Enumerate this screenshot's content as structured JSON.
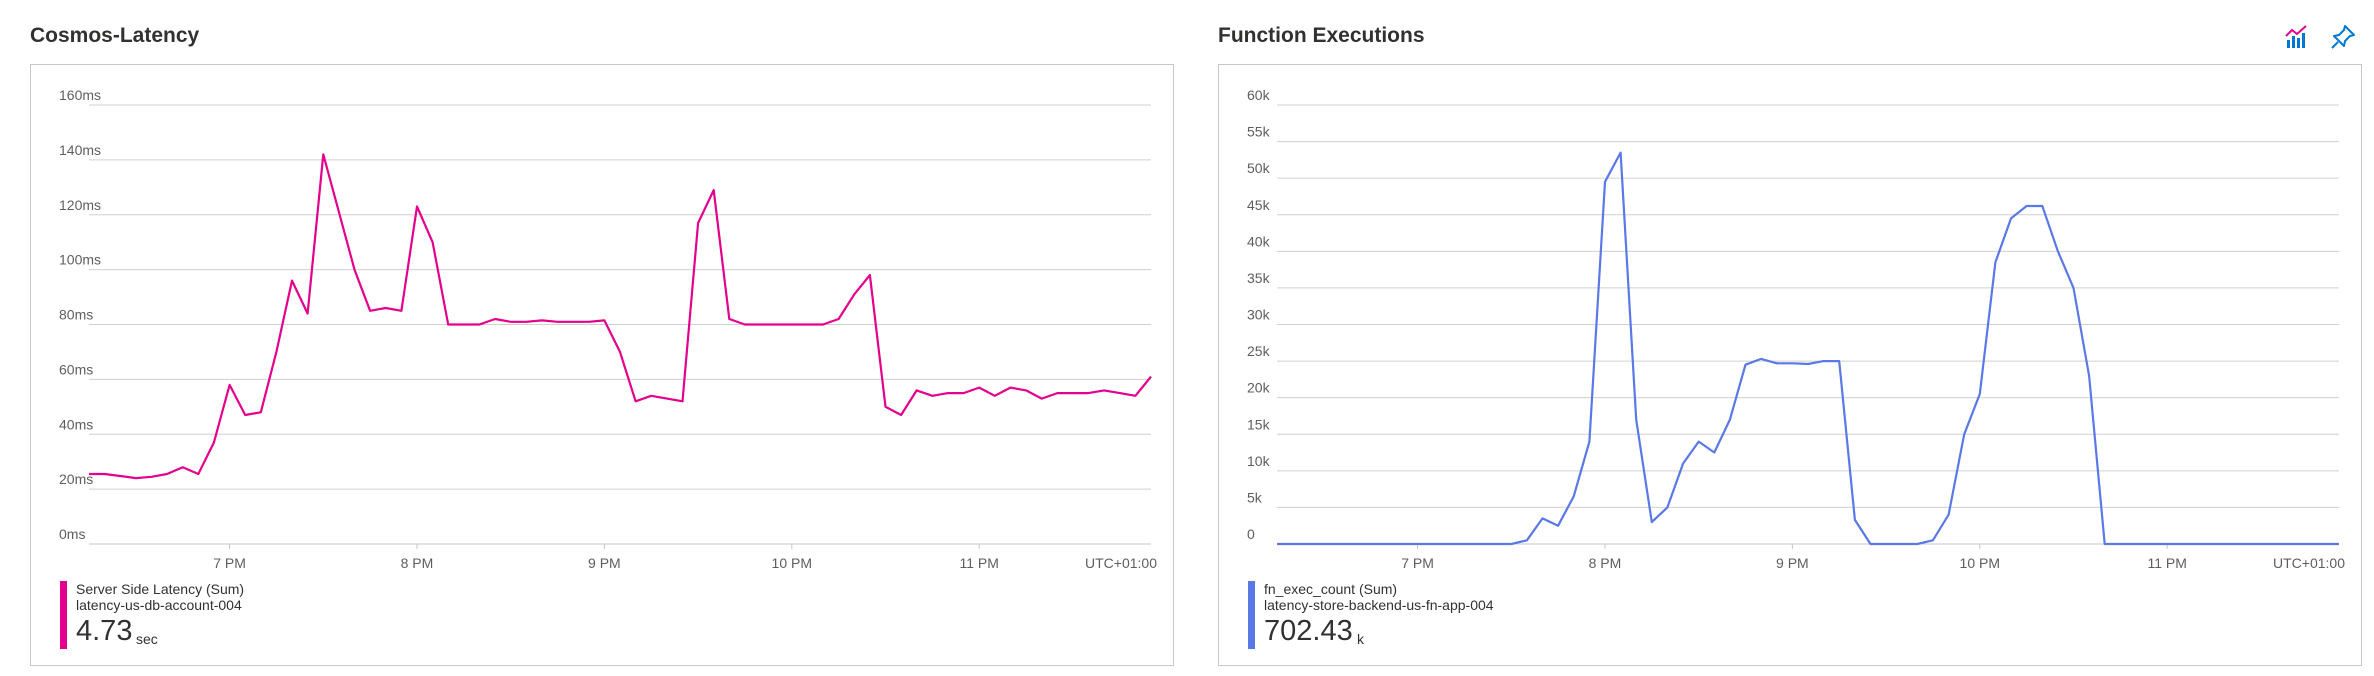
{
  "panels": [
    {
      "title": "Cosmos-Latency",
      "legend": {
        "name": "Server Side Latency (Sum)",
        "resource": "latency-us-db-account-004",
        "value": "4.73",
        "unit": "sec",
        "color": "#e3008c"
      }
    },
    {
      "title": "Function Executions",
      "legend": {
        "name": "fn_exec_count (Sum)",
        "resource": "latency-store-backend-us-fn-app-004",
        "value": "702.43",
        "unit": "k",
        "color": "#5a78e6"
      },
      "icons": [
        "chart-icon",
        "pin-icon"
      ]
    }
  ],
  "chart_data": [
    {
      "type": "line",
      "y_ticks": [
        "0ms",
        "20ms",
        "40ms",
        "60ms",
        "80ms",
        "100ms",
        "120ms",
        "140ms",
        "160ms"
      ],
      "ylim": [
        0,
        160
      ],
      "x_ticks": [
        "7 PM",
        "8 PM",
        "9 PM",
        "10 PM",
        "11 PM"
      ],
      "x_tick_hours": [
        19,
        20,
        21,
        22,
        23
      ],
      "timezone_label": "UTC+01:00",
      "grid": true,
      "series": [
        {
          "name": "Server Side Latency (Sum)",
          "color": "#e3008c",
          "x": [
            "18:15",
            "18:20",
            "18:25",
            "18:30",
            "18:35",
            "18:40",
            "18:45",
            "18:50",
            "18:55",
            "19:00",
            "19:05",
            "19:10",
            "19:15",
            "19:20",
            "19:25",
            "19:30",
            "19:35",
            "19:40",
            "19:45",
            "19:50",
            "19:55",
            "20:00",
            "20:05",
            "20:10",
            "20:15",
            "20:20",
            "20:25",
            "20:30",
            "20:35",
            "20:40",
            "20:45",
            "20:50",
            "20:55",
            "21:00",
            "21:05",
            "21:10",
            "21:15",
            "21:20",
            "21:25",
            "21:30",
            "21:35",
            "21:40",
            "21:45",
            "21:50",
            "21:55",
            "22:00",
            "22:05",
            "22:10",
            "22:15",
            "22:20",
            "22:25",
            "22:30",
            "22:35",
            "22:40",
            "22:45",
            "22:50",
            "22:55",
            "23:00",
            "23:05",
            "23:10",
            "23:15",
            "23:20",
            "23:25",
            "23:30",
            "23:35",
            "23:40",
            "23:45",
            "23:50",
            "23:55"
          ],
          "y": [
            25.5,
            25.5,
            24.8,
            24,
            24.5,
            25.5,
            28,
            25.5,
            37,
            58,
            47,
            48,
            70,
            96,
            84,
            142,
            121,
            100,
            85,
            86,
            85,
            123,
            110,
            80,
            80,
            80,
            82,
            81,
            81,
            81.5,
            81,
            81,
            81,
            81.5,
            70,
            52,
            54,
            53,
            52,
            117,
            129,
            82,
            80,
            80,
            80,
            80,
            80,
            80,
            82,
            91,
            98,
            50,
            47,
            56,
            54,
            55,
            55,
            57,
            54,
            57,
            56,
            53,
            55,
            55,
            55,
            56,
            55,
            54,
            61
          ]
        }
      ]
    },
    {
      "type": "line",
      "y_ticks": [
        "0",
        "5k",
        "10k",
        "15k",
        "20k",
        "25k",
        "30k",
        "35k",
        "40k",
        "45k",
        "50k",
        "55k",
        "60k"
      ],
      "ylim": [
        0,
        60000
      ],
      "x_ticks": [
        "7 PM",
        "8 PM",
        "9 PM",
        "10 PM",
        "11 PM"
      ],
      "x_tick_hours": [
        19,
        20,
        21,
        22,
        23
      ],
      "timezone_label": "UTC+01:00",
      "grid": true,
      "series": [
        {
          "name": "fn_exec_count (Sum)",
          "color": "#5a78e6",
          "x": [
            "18:15",
            "18:20",
            "18:25",
            "18:30",
            "18:35",
            "18:40",
            "18:45",
            "18:50",
            "18:55",
            "19:00",
            "19:05",
            "19:10",
            "19:15",
            "19:20",
            "19:25",
            "19:30",
            "19:35",
            "19:40",
            "19:45",
            "19:50",
            "19:55",
            "20:00",
            "20:05",
            "20:10",
            "20:15",
            "20:20",
            "20:25",
            "20:30",
            "20:35",
            "20:40",
            "20:45",
            "20:50",
            "20:55",
            "21:00",
            "21:05",
            "21:10",
            "21:15",
            "21:20",
            "21:25",
            "21:30",
            "21:35",
            "21:40",
            "21:45",
            "21:50",
            "21:55",
            "22:00",
            "22:05",
            "22:10",
            "22:15",
            "22:20",
            "22:25",
            "22:30",
            "22:35",
            "22:40",
            "22:45",
            "22:50",
            "22:55",
            "23:00",
            "23:05",
            "23:10",
            "23:15",
            "23:20",
            "23:25",
            "23:30",
            "23:35",
            "23:40",
            "23:45",
            "23:50",
            "23:55"
          ],
          "y": [
            0,
            0,
            0,
            0,
            0,
            0,
            0,
            0,
            0,
            0,
            0,
            0,
            0,
            0,
            0,
            0,
            500,
            3500,
            2500,
            6500,
            14000,
            49500,
            53500,
            17000,
            3000,
            5000,
            11000,
            14000,
            12500,
            17000,
            24500,
            25300,
            24700,
            24700,
            24600,
            25000,
            25000,
            3300,
            0,
            0,
            0,
            0,
            500,
            4000,
            15000,
            20500,
            38500,
            44500,
            46200,
            46200,
            40000,
            35000,
            23000,
            0,
            0,
            0,
            0,
            0,
            0,
            0,
            0,
            0,
            0,
            0,
            0,
            0,
            0,
            0,
            0
          ]
        }
      ]
    }
  ]
}
